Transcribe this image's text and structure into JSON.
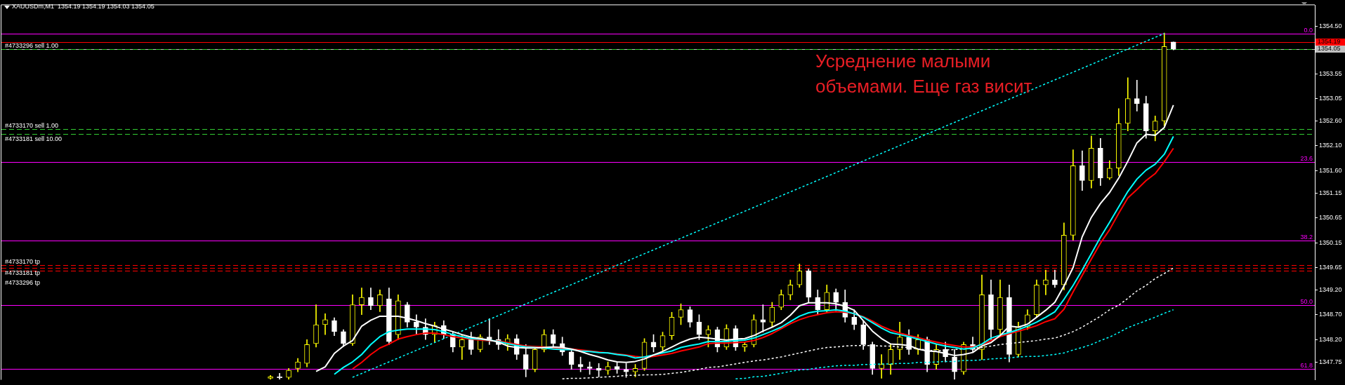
{
  "chart_data": {
    "type": "candlestick",
    "title": "XAUUSDm,M1  1354.19 1354.19 1354.03 1354.05",
    "categories": [
      null,
      null,
      null,
      null,
      null,
      null,
      null,
      null,
      null,
      null,
      null,
      null,
      null,
      null,
      null,
      null,
      null,
      null,
      null,
      null,
      null,
      null,
      null,
      null,
      null,
      null,
      null,
      null,
      null,
      null,
      null,
      null,
      null,
      null,
      null,
      null,
      null,
      null,
      null,
      null,
      null,
      null,
      null,
      null,
      null,
      null,
      null,
      null,
      null,
      null,
      null,
      null,
      null,
      null,
      null,
      null,
      null,
      null,
      null,
      null,
      null,
      null,
      null,
      null,
      null,
      null,
      null,
      null,
      null,
      null,
      null,
      null,
      null,
      null,
      null,
      null,
      null,
      null,
      null,
      null,
      null,
      null,
      null,
      null,
      null,
      null,
      null,
      null,
      null,
      null,
      null,
      null,
      null,
      null,
      null,
      null,
      null,
      null,
      null,
      null,
      null,
      null,
      null,
      null,
      null,
      null,
      null,
      null,
      null,
      null,
      null,
      null,
      null,
      null,
      null,
      null,
      null,
      null,
      null,
      null,
      null,
      null,
      null,
      null,
      null,
      null,
      null,
      null,
      null,
      null,
      null,
      null,
      null,
      null,
      null,
      null,
      null,
      null,
      null,
      null,
      null,
      null,
      null,
      null
    ],
    "ohlc": [
      null,
      null,
      null,
      null,
      null,
      null,
      null,
      null,
      null,
      null,
      null,
      null,
      null,
      null,
      null,
      null,
      null,
      null,
      null,
      null,
      null,
      null,
      null,
      null,
      null,
      null,
      null,
      null,
      null,
      [
        1347.42,
        1347.48,
        1347.4,
        1347.45
      ],
      [
        1347.45,
        1347.52,
        1347.4,
        1347.43
      ],
      [
        1347.44,
        1347.62,
        1347.4,
        1347.58
      ],
      [
        1347.62,
        1347.82,
        1347.55,
        1347.75
      ],
      [
        1347.72,
        1348.2,
        1347.65,
        1348.1
      ],
      [
        1348.12,
        1348.9,
        1348.05,
        1348.5
      ],
      [
        1348.5,
        1348.72,
        1348.3,
        1348.6
      ],
      [
        1348.58,
        1348.64,
        1348.28,
        1348.36
      ],
      [
        1348.36,
        1348.4,
        1348.06,
        1348.12
      ],
      [
        1348.12,
        1349.1,
        1348.08,
        1348.9
      ],
      [
        1348.9,
        1349.24,
        1348.7,
        1349.05
      ],
      [
        1349.05,
        1349.24,
        1348.8,
        1348.88
      ],
      [
        1348.88,
        1349.2,
        1348.76,
        1349.1
      ],
      [
        1349.02,
        1349.24,
        1348.1,
        1348.16
      ],
      [
        1348.3,
        1349.1,
        1348.2,
        1348.98
      ],
      [
        1348.9,
        1348.95,
        1348.45,
        1348.55
      ],
      [
        1348.55,
        1348.7,
        1348.3,
        1348.45
      ],
      [
        1348.45,
        1348.62,
        1348.2,
        1348.3
      ],
      [
        1348.3,
        1348.55,
        1348.15,
        1348.48
      ],
      [
        1348.48,
        1348.58,
        1348.22,
        1348.3
      ],
      [
        1348.3,
        1348.35,
        1347.95,
        1348.05
      ],
      [
        1348.05,
        1348.3,
        1347.8,
        1348.2
      ],
      [
        1348.2,
        1348.35,
        1347.9,
        1348.0
      ],
      [
        1348.0,
        1348.3,
        1347.95,
        1348.25
      ],
      [
        1348.25,
        1348.62,
        1348.1,
        1348.2
      ],
      [
        1348.2,
        1348.4,
        1348.0,
        1348.1
      ],
      [
        1348.1,
        1348.3,
        1347.98,
        1348.22
      ],
      [
        1348.22,
        1348.3,
        1347.8,
        1347.9
      ],
      [
        1347.9,
        1348.1,
        1347.45,
        1347.6
      ],
      [
        1347.6,
        1348.05,
        1347.55,
        1348.0
      ],
      [
        1348.0,
        1348.4,
        1347.95,
        1348.3
      ],
      [
        1348.3,
        1348.4,
        1348.05,
        1348.12
      ],
      [
        1348.12,
        1348.25,
        1347.88,
        1347.95
      ],
      [
        1347.95,
        1348.0,
        1347.6,
        1347.7
      ],
      [
        1347.7,
        1347.85,
        1347.55,
        1347.65
      ],
      [
        1347.65,
        1347.75,
        1347.5,
        1347.62
      ],
      [
        1347.62,
        1347.72,
        1347.45,
        1347.58
      ],
      [
        1347.58,
        1347.75,
        1347.5,
        1347.66
      ],
      [
        1347.66,
        1347.74,
        1347.52,
        1347.6
      ],
      [
        1347.6,
        1347.72,
        1347.44,
        1347.55
      ],
      [
        1347.55,
        1347.7,
        1347.45,
        1347.62
      ],
      [
        1347.62,
        1348.22,
        1347.58,
        1348.15
      ],
      [
        1348.15,
        1348.3,
        1347.95,
        1348.05
      ],
      [
        1348.05,
        1348.35,
        1347.98,
        1348.28
      ],
      [
        1348.28,
        1348.75,
        1348.2,
        1348.65
      ],
      [
        1348.65,
        1348.92,
        1348.5,
        1348.8
      ],
      [
        1348.8,
        1348.86,
        1348.45,
        1348.55
      ],
      [
        1348.55,
        1348.7,
        1348.2,
        1348.3
      ],
      [
        1348.3,
        1348.48,
        1348.05,
        1348.4
      ],
      [
        1348.4,
        1348.45,
        1347.95,
        1348.05
      ],
      [
        1348.05,
        1348.5,
        1348.0,
        1348.42
      ],
      [
        1348.42,
        1348.48,
        1347.98,
        1348.05
      ],
      [
        1348.05,
        1348.15,
        1347.96,
        1348.1
      ],
      [
        1348.1,
        1348.7,
        1348.05,
        1348.6
      ],
      [
        1348.6,
        1348.9,
        1348.35,
        1348.55
      ],
      [
        1348.55,
        1348.95,
        1348.45,
        1348.85
      ],
      [
        1348.85,
        1349.2,
        1348.8,
        1349.1
      ],
      [
        1349.1,
        1349.4,
        1349.0,
        1349.3
      ],
      [
        1349.3,
        1349.72,
        1349.25,
        1349.58
      ],
      [
        1349.58,
        1349.62,
        1348.95,
        1349.05
      ],
      [
        1349.05,
        1349.2,
        1348.7,
        1348.8
      ],
      [
        1348.8,
        1349.3,
        1348.75,
        1349.15
      ],
      [
        1349.15,
        1349.22,
        1348.78,
        1348.95
      ],
      [
        1348.95,
        1349.2,
        1348.55,
        1348.65
      ],
      [
        1348.65,
        1348.8,
        1348.4,
        1348.5
      ],
      [
        1348.5,
        1348.58,
        1348.0,
        1348.1
      ],
      [
        1348.1,
        1348.15,
        1347.5,
        1347.62
      ],
      [
        1347.62,
        1347.9,
        1347.42,
        1347.7
      ],
      [
        1347.7,
        1348.1,
        1347.5,
        1348.0
      ],
      [
        1348.0,
        1348.55,
        1347.8,
        1348.25
      ],
      [
        1348.25,
        1348.4,
        1347.9,
        1348.0
      ],
      [
        1348.0,
        1348.3,
        1347.9,
        1348.2
      ],
      [
        1348.2,
        1348.25,
        1347.55,
        1347.7
      ],
      [
        1347.7,
        1348.1,
        1347.6,
        1348.0
      ],
      [
        1348.0,
        1348.15,
        1347.75,
        1347.85
      ],
      [
        1347.85,
        1348.0,
        1347.4,
        1347.55
      ],
      [
        1347.55,
        1348.15,
        1347.5,
        1348.1
      ],
      [
        1348.1,
        1348.25,
        1347.95,
        1348.0
      ],
      [
        1348.0,
        1349.5,
        1347.8,
        1349.1
      ],
      [
        1349.1,
        1349.4,
        1348.2,
        1348.4
      ],
      [
        1348.4,
        1349.4,
        1348.3,
        1349.05
      ],
      [
        1349.05,
        1349.3,
        1347.75,
        1347.9
      ],
      [
        1347.9,
        1348.55,
        1347.85,
        1348.45
      ],
      [
        1348.45,
        1348.8,
        1348.4,
        1348.7
      ],
      [
        1348.7,
        1349.4,
        1348.65,
        1349.3
      ],
      [
        1349.3,
        1349.6,
        1349.1,
        1349.4
      ],
      [
        1349.4,
        1349.6,
        1349.25,
        1349.3
      ],
      [
        1349.3,
        1350.55,
        1349.2,
        1350.3
      ],
      [
        1350.3,
        1352.02,
        1350.2,
        1351.7
      ],
      [
        1351.7,
        1352.0,
        1351.2,
        1351.4
      ],
      [
        1351.4,
        1352.3,
        1351.25,
        1352.05
      ],
      [
        1352.05,
        1352.25,
        1351.3,
        1351.45
      ],
      [
        1351.45,
        1351.8,
        1351.42,
        1351.65
      ],
      [
        1351.65,
        1352.85,
        1351.5,
        1352.55
      ],
      [
        1352.55,
        1353.47,
        1352.4,
        1353.05
      ],
      [
        1353.05,
        1353.42,
        1352.8,
        1352.95
      ],
      [
        1352.95,
        1353.1,
        1352.25,
        1352.4
      ],
      [
        1352.4,
        1352.7,
        1352.2,
        1352.6
      ],
      [
        1352.6,
        1354.37,
        1352.5,
        1354.1
      ],
      [
        1354.19,
        1354.19,
        1354.03,
        1354.05
      ],
      null,
      null,
      null,
      null,
      null,
      null,
      null,
      null,
      null,
      null,
      null,
      null,
      null,
      null,
      null
    ],
    "colors": [
      null,
      null,
      null,
      null,
      null,
      null,
      null,
      null,
      null,
      null,
      null,
      null,
      null,
      null,
      null,
      null,
      null,
      null,
      null,
      null,
      null,
      null,
      null,
      null,
      null,
      null,
      null,
      null,
      null,
      "#ffff00",
      "#ffffff",
      "#ffff00",
      "#ffff00",
      "#ffff00",
      "#ffff00",
      "#ffff00",
      "#ffffff",
      "#ffffff",
      "#ffff00",
      "#ffff00",
      "#ffffff",
      "#ffff00",
      "#ffffff",
      "#ffff00",
      "#ffffff",
      "#ffffff",
      "#ffffff",
      "#ffff00",
      "#ffffff",
      "#ffffff",
      "#ffff00",
      "#ffffff",
      "#ffff00",
      "#ffffff",
      "#ffffff",
      "#ffff00",
      "#ffffff",
      "#ffffff",
      "#ffff00",
      "#ffff00",
      "#ffffff",
      "#ffffff",
      "#ffffff",
      "#ffffff",
      "#ffffff",
      "#ffffff",
      "#ffff00",
      "#ffffff",
      "#ffffff",
      "#ffff00",
      "#ffff00",
      "#ffffff",
      "#ffff00",
      "#ffff00",
      "#ffff00",
      "#ffffff",
      "#ffffff",
      "#ffff00",
      "#ffffff",
      "#ffff00",
      "#ffffff",
      "#ffff00",
      "#ffff00",
      "#ffffff",
      "#ffff00",
      "#ffff00",
      "#ffff00",
      "#ffff00",
      "#ffffff",
      "#ffffff",
      "#ffff00",
      "#ffffff",
      "#ffffff",
      "#ffffff",
      "#ffffff",
      "#ffffff",
      "#ffff00",
      "#ffff00",
      "#ffff00",
      "#ffffff",
      "#ffff00",
      "#ffffff",
      "#ffff00",
      "#ffffff",
      "#ffffff",
      "#ffff00",
      "#ffffff",
      "#ffff00",
      "#ffffff",
      "#ffff00",
      "#ffffff",
      "#ffff00",
      "#ffff00",
      "#ffff00",
      "#ffff00",
      "#ffffff",
      "#ffff00",
      "#ffff00",
      "#ffffff",
      "#ffff00",
      "#ffffff",
      "#ffff00",
      "#ffff00",
      "#ffff00",
      "#ffffff",
      "#ffffff",
      "#ffff00",
      "#ffff00",
      "#ffffff",
      null,
      null,
      null,
      null,
      null,
      null,
      null,
      null,
      null,
      null,
      null,
      null,
      null,
      null,
      null
    ],
    "series": [
      {
        "type": "line",
        "color": "#ffffff",
        "line_style": "solid",
        "values": [
          null,
          null,
          null,
          null,
          null,
          null,
          null,
          null,
          null,
          null,
          null,
          null,
          null,
          null,
          null,
          null,
          null,
          null,
          null,
          null,
          null,
          null,
          null,
          null,
          null,
          null,
          null,
          null,
          null,
          null,
          null,
          null,
          null,
          null,
          1347.56,
          1347.65,
          1347.92,
          1348.07,
          1348.18,
          1348.47,
          1348.59,
          1348.67,
          1348.67,
          1348.67,
          1348.63,
          1348.58,
          1348.52,
          1348.47,
          1348.41,
          1348.36,
          1348.3,
          1348.25,
          1348.22,
          1348.19,
          1348.15,
          1348.07,
          1348.04,
          1348.03,
          1348.03,
          1348.04,
          1348.05,
          1348.04,
          1348.01,
          1347.96,
          1347.9,
          1347.85,
          1347.79,
          1347.75,
          1347.74,
          1347.76,
          1347.81,
          1347.89,
          1347.96,
          1348.05,
          1348.14,
          1348.21,
          1348.25,
          1348.23,
          1348.21,
          1348.19,
          1348.21,
          1348.22,
          1348.28,
          1348.37,
          1348.45,
          1348.54,
          1348.69,
          1348.88,
          1348.94,
          1348.94,
          1348.94,
          1348.92,
          1348.87,
          1348.79,
          1348.58,
          1348.37,
          1348.22,
          1348.11,
          1348.1,
          1348.08,
          1348.01,
          1347.97,
          1347.96,
          1347.92,
          1347.88,
          1347.9,
          1347.94,
          1348.07,
          1348.14,
          1348.28,
          1348.47,
          1348.45,
          1348.51,
          1348.65,
          1348.79,
          1348.95,
          1349.28,
          1349.65,
          1350.27,
          1350.66,
          1350.94,
          1351.16,
          1351.45,
          1351.79,
          1352.16,
          1352.33,
          1352.31,
          1352.47,
          1352.92,
          null,
          null,
          null,
          null,
          null,
          null,
          null,
          null,
          null,
          null,
          null,
          null,
          null,
          null,
          null
        ]
      },
      {
        "type": "line",
        "color": "#00ffff",
        "line_style": "solid",
        "values": [
          null,
          null,
          null,
          null,
          null,
          null,
          null,
          null,
          null,
          null,
          null,
          null,
          null,
          null,
          null,
          null,
          null,
          null,
          null,
          null,
          null,
          null,
          null,
          null,
          null,
          null,
          null,
          null,
          null,
          null,
          null,
          null,
          null,
          null,
          null,
          null,
          1347.5,
          1347.64,
          1347.75,
          1347.9,
          1348.1,
          1348.26,
          1348.36,
          1348.39,
          1348.41,
          1348.41,
          1348.41,
          1348.4,
          1348.36,
          1348.3,
          1348.26,
          1348.22,
          1348.21,
          1348.19,
          1348.16,
          1348.12,
          1348.08,
          1348.05,
          1348.04,
          1348.03,
          1348.01,
          1348.0,
          1348.0,
          1347.97,
          1347.96,
          1347.94,
          1347.93,
          1347.9,
          1347.88,
          1347.83,
          1347.85,
          1347.89,
          1347.93,
          1347.97,
          1348.04,
          1348.08,
          1348.11,
          1348.16,
          1348.16,
          1348.16,
          1348.18,
          1348.19,
          1348.23,
          1348.3,
          1348.37,
          1348.45,
          1348.56,
          1348.67,
          1348.74,
          1348.77,
          1348.78,
          1348.8,
          1348.77,
          1348.72,
          1348.65,
          1348.54,
          1348.43,
          1348.34,
          1348.3,
          1348.26,
          1348.21,
          1348.16,
          1348.11,
          1348.07,
          1348.04,
          1348.01,
          1348.03,
          1348.11,
          1348.23,
          1348.29,
          1348.34,
          1348.4,
          1348.47,
          1348.55,
          1348.65,
          1348.76,
          1349.01,
          1349.29,
          1349.6,
          1349.93,
          1350.26,
          1350.56,
          1350.87,
          1351.18,
          1351.43,
          1351.61,
          1351.73,
          1351.93,
          1352.29,
          null,
          null,
          null,
          null,
          null,
          null,
          null,
          null,
          null,
          null,
          null,
          null,
          null,
          null,
          null
        ]
      },
      {
        "type": "line",
        "color": "#ff0000",
        "line_style": "solid",
        "values": [
          null,
          null,
          null,
          null,
          null,
          null,
          null,
          null,
          null,
          null,
          null,
          null,
          null,
          null,
          null,
          null,
          null,
          null,
          null,
          null,
          null,
          null,
          null,
          null,
          null,
          null,
          null,
          null,
          null,
          null,
          null,
          null,
          null,
          null,
          null,
          null,
          null,
          null,
          1347.61,
          1347.74,
          1347.9,
          1348.03,
          1348.11,
          1348.21,
          1348.26,
          1348.3,
          1348.33,
          1348.33,
          1348.3,
          1348.26,
          1348.23,
          1348.21,
          1348.19,
          1348.18,
          1348.17,
          1348.14,
          1348.1,
          1348.07,
          1348.06,
          1348.05,
          1348.03,
          1348.02,
          1348.01,
          1347.99,
          1347.97,
          1347.95,
          1347.93,
          1347.91,
          1347.89,
          1347.86,
          1347.84,
          1347.86,
          1347.89,
          1347.92,
          1347.97,
          1348.01,
          1348.05,
          1348.12,
          1348.13,
          1348.13,
          1348.14,
          1348.15,
          1348.18,
          1348.24,
          1348.32,
          1348.42,
          1348.52,
          1348.6,
          1348.66,
          1348.7,
          1348.74,
          1348.76,
          1348.75,
          1348.72,
          1348.66,
          1348.57,
          1348.47,
          1348.39,
          1348.33,
          1348.28,
          1348.24,
          1348.19,
          1348.15,
          1348.11,
          1348.08,
          1348.05,
          1348.05,
          1348.1,
          1348.18,
          1348.26,
          1348.32,
          1348.37,
          1348.42,
          1348.48,
          1348.56,
          1348.62,
          1348.81,
          1349.16,
          1349.49,
          1349.82,
          1350.14,
          1350.41,
          1350.74,
          1351.05,
          1351.22,
          1351.4,
          1351.54,
          1351.78,
          1352.05,
          null,
          null,
          null,
          null,
          null,
          null,
          null,
          null,
          null,
          null,
          null,
          null,
          null,
          null,
          null
        ]
      },
      {
        "type": "line",
        "color": "#ffffff",
        "line_style": "dotted",
        "values": [
          null,
          null,
          null,
          null,
          null,
          null,
          null,
          null,
          null,
          null,
          null,
          null,
          null,
          null,
          null,
          null,
          null,
          null,
          null,
          null,
          null,
          null,
          null,
          null,
          null,
          null,
          null,
          null,
          null,
          null,
          null,
          null,
          null,
          null,
          null,
          null,
          null,
          null,
          null,
          null,
          null,
          null,
          null,
          null,
          null,
          null,
          null,
          null,
          null,
          null,
          null,
          null,
          null,
          null,
          null,
          null,
          null,
          null,
          null,
          null,
          null,
          1347.41,
          1347.42,
          1347.42,
          1347.43,
          1347.44,
          1347.45,
          1347.46,
          1347.48,
          1347.48,
          1347.49,
          1347.49,
          1347.5,
          1347.52,
          1347.54,
          1347.57,
          1347.6,
          1347.64,
          1347.65,
          1347.68,
          1347.71,
          1347.74,
          1347.77,
          1347.79,
          1347.82,
          1347.85,
          1347.89,
          1347.93,
          1347.97,
          1348.01,
          1348.04,
          1348.05,
          1348.07,
          1348.08,
          1348.08,
          1348.08,
          1348.07,
          1348.07,
          1348.05,
          1348.04,
          1348.01,
          1347.99,
          1347.97,
          1347.99,
          1348.0,
          1348.01,
          1348.03,
          1348.04,
          1348.07,
          1348.1,
          1348.12,
          1348.14,
          1348.16,
          1348.18,
          1348.21,
          1348.23,
          1348.29,
          1348.36,
          1348.45,
          1348.56,
          1348.67,
          1348.8,
          1348.89,
          1349.03,
          1349.18,
          1349.29,
          1349.43,
          1349.53,
          1349.64,
          null,
          null,
          null,
          null,
          null,
          null,
          null,
          null,
          null,
          null,
          null,
          null,
          null,
          null,
          null
        ]
      },
      {
        "type": "line",
        "color": "#00ffff",
        "line_style": "dotted",
        "values": [
          null,
          null,
          null,
          null,
          null,
          null,
          null,
          null,
          null,
          null,
          null,
          null,
          null,
          null,
          null,
          null,
          null,
          null,
          null,
          null,
          null,
          null,
          null,
          null,
          null,
          null,
          null,
          null,
          null,
          null,
          null,
          null,
          null,
          null,
          null,
          null,
          null,
          null,
          null,
          null,
          null,
          null,
          null,
          null,
          null,
          null,
          null,
          null,
          null,
          null,
          null,
          null,
          null,
          null,
          null,
          null,
          null,
          null,
          null,
          null,
          null,
          null,
          null,
          null,
          null,
          null,
          null,
          null,
          null,
          null,
          null,
          null,
          null,
          null,
          null,
          null,
          null,
          null,
          null,
          null,
          1347.41,
          1347.42,
          1347.45,
          1347.46,
          1347.49,
          1347.52,
          1347.56,
          1347.59,
          1347.6,
          1347.63,
          1347.65,
          1347.67,
          1347.68,
          1347.68,
          1347.7,
          1347.7,
          1347.71,
          1347.71,
          1347.72,
          1347.72,
          1347.74,
          1347.74,
          1347.75,
          1347.76,
          1347.76,
          1347.78,
          1347.78,
          1347.79,
          1347.81,
          1347.82,
          1347.83,
          1347.85,
          1347.86,
          1347.86,
          1347.88,
          1347.9,
          1347.93,
          1347.99,
          1348.04,
          1348.1,
          1348.18,
          1348.25,
          1348.34,
          1348.44,
          1348.51,
          1348.58,
          1348.65,
          1348.73,
          1348.8,
          null,
          null,
          null,
          null,
          null,
          null,
          null,
          null,
          null,
          null,
          null,
          null,
          null,
          null,
          null
        ]
      },
      {
        "type": "line",
        "color": "#00ffff",
        "line_style": "dotted",
        "values": [
          null,
          null,
          null,
          null,
          null,
          null,
          null,
          null,
          null,
          null,
          null,
          null,
          null,
          null,
          null,
          null,
          null,
          null,
          null,
          null,
          null,
          null,
          null,
          null,
          null,
          null,
          null,
          null,
          null,
          null,
          null,
          null,
          null,
          null,
          null,
          null,
          null,
          null,
          1347.44,
          null,
          null,
          null,
          null,
          null,
          null,
          null,
          null,
          null,
          null,
          null,
          null,
          null,
          null,
          null,
          null,
          null,
          null,
          null,
          null,
          null,
          null,
          null,
          null,
          null,
          null,
          null,
          null,
          null,
          null,
          null,
          null,
          null,
          null,
          null,
          null,
          null,
          null,
          null,
          null,
          null,
          null,
          null,
          null,
          null,
          null,
          null,
          null,
          null,
          null,
          null,
          null,
          null,
          null,
          null,
          null,
          null,
          null,
          null,
          null,
          null,
          null,
          null,
          null,
          null,
          null,
          null,
          null,
          null,
          null,
          null,
          null,
          null,
          null,
          null,
          null,
          null,
          null,
          null,
          null,
          null,
          null,
          null,
          null,
          null,
          null,
          null,
          null,
          1354.36,
          null,
          null,
          null,
          null,
          null,
          null,
          null,
          null,
          null,
          null,
          null,
          null,
          null,
          null,
          null,
          null
        ]
      }
    ],
    "ylim": [
      1347.39,
      1354.93
    ],
    "yticks": [
      {
        "value": 1354.5,
        "label": "1354.50"
      },
      1353.55,
      1353.05,
      {
        "value": 1352.6,
        "label": "1352.60"
      },
      {
        "value": 1352.1,
        "label": "1352.10"
      },
      {
        "value": 1351.6,
        "label": "1351.60"
      },
      1351.15,
      1350.65,
      1350.15,
      1349.65,
      {
        "value": 1349.2,
        "label": "1349.20"
      },
      {
        "value": 1348.7,
        "label": "1348.70"
      },
      {
        "value": 1348.2,
        "label": "1348.20"
      },
      1347.75
    ],
    "ref_lines": [
      {
        "axis": "y",
        "value": 1354.36,
        "color": "#ff00ff"
      },
      {
        "axis": "y",
        "value": 1351.78,
        "color": "#ff00ff"
      },
      {
        "axis": "y",
        "value": 1350.19,
        "color": "#ff00ff"
      },
      {
        "axis": "y",
        "value": 1348.9,
        "color": "#ff00ff"
      },
      {
        "axis": "y",
        "value": 1347.61,
        "color": "#ff00ff"
      },
      {
        "axis": "y",
        "value": 1354.19,
        "label": "1354.19",
        "color": "#ff0000"
      },
      {
        "axis": "y",
        "value": 1354.05,
        "label": "1354.05",
        "color": "#c0c0c0"
      },
      {
        "axis": "y",
        "value": 1354.05,
        "label": "#4733296 sell 1.00",
        "color": "#32cd32",
        "line_style": "dashed"
      },
      {
        "axis": "y",
        "value": 1352.44,
        "label": "#4733170 sell 1.00",
        "color": "#32cd32",
        "line_style": "dashed"
      },
      {
        "axis": "y",
        "value": 1352.34,
        "label": "#4733181 sell 10.00",
        "color": "#32cd32",
        "line_style": "dashed"
      },
      {
        "axis": "y",
        "value": 1349.7,
        "label": "#4733170 tp",
        "color": "#ff0000",
        "line_style": "dashed"
      },
      {
        "axis": "y",
        "value": 1349.64,
        "label": "#4733181 tp",
        "color": "#ff0000",
        "line_style": "dashed"
      },
      {
        "axis": "y",
        "value": 1349.58,
        "label": "#4733296 tp",
        "color": "#ff0000",
        "line_style": "dashed"
      }
    ],
    "annotations": [
      "Усреднение малыми объемами. Еще газ висит",
      {
        "text": "0.0",
        "y": 1354.36
      },
      {
        "text": "23.6",
        "y": 1351.78
      },
      {
        "text": "38.2",
        "y": 1350.19
      },
      {
        "text": "50.0",
        "y": 1348.9
      },
      {
        "text": "61.8",
        "y": 1347.61
      }
    ],
    "marker": "none",
    "tick_labels": "y"
  }
}
